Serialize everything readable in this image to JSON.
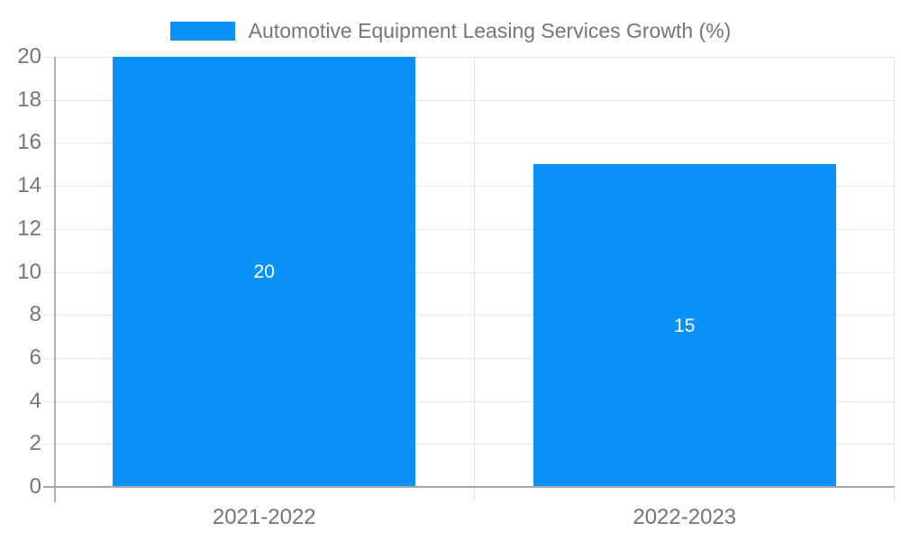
{
  "chart_data": {
    "type": "bar",
    "title": "Automotive Equipment Leasing Services Growth (%)",
    "categories": [
      "2021-2022",
      "2022-2023"
    ],
    "values": [
      20,
      15
    ],
    "bar_labels": [
      "20",
      "15"
    ],
    "ytick_labels": [
      "0",
      "2",
      "4",
      "6",
      "8",
      "10",
      "12",
      "14",
      "16",
      "18",
      "20"
    ],
    "xlabel": "",
    "ylabel": "",
    "ylim": [
      0,
      20
    ],
    "ytick_step": 2,
    "grid": true,
    "legend_position": "top",
    "colors": {
      "bar": "#0b92f8",
      "bar_value_text": "#ffffff",
      "axis_text": "#757575",
      "gridline": "#e6e6e6",
      "axis_line": "#b0b0b0",
      "baseline": "#a8a8a8"
    }
  }
}
